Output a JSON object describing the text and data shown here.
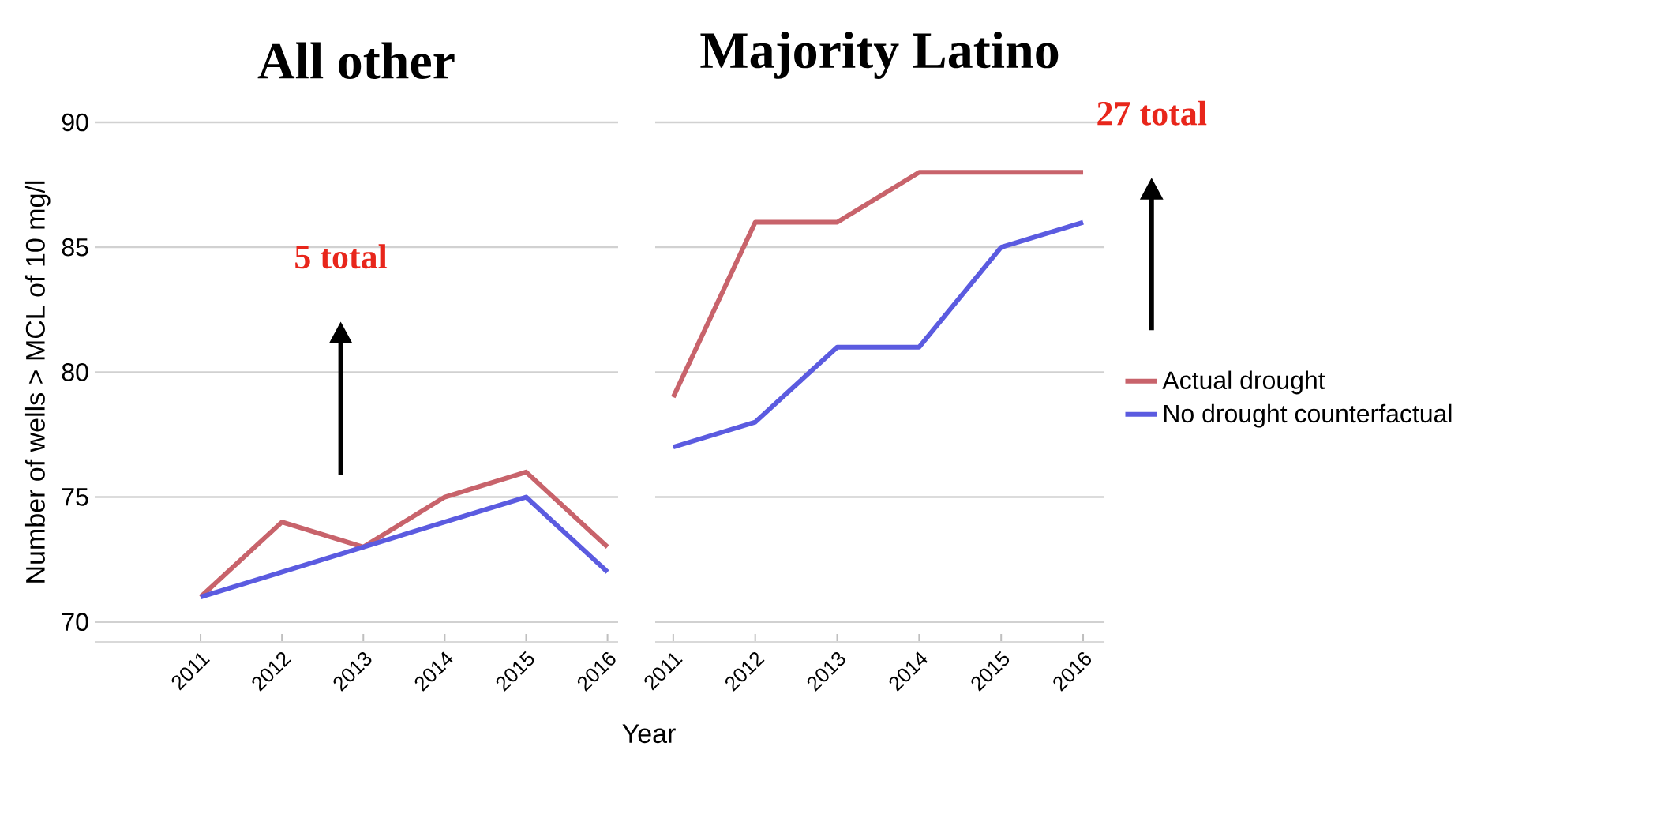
{
  "chart_data": [
    {
      "type": "line",
      "title": "All other",
      "ylabel": "Number of wells > MCL of 10 mg/l",
      "xlabel": "Year",
      "x": [
        2011,
        2012,
        2013,
        2014,
        2015,
        2016
      ],
      "series": [
        {
          "color": "#c8636b",
          "values": [
            71,
            74,
            73,
            75,
            76,
            73
          ]
        },
        {
          "color": "#5b5be0",
          "values": [
            71,
            72,
            73,
            74,
            75,
            72
          ]
        }
      ],
      "xlim": [
        2009.7,
        2016.13
      ],
      "ylim": [
        69.2,
        90
      ],
      "xticks": [
        2011,
        2012,
        2013,
        2014,
        2015,
        2016
      ],
      "yticks": [
        70,
        75,
        80,
        85,
        90
      ],
      "grid": "y",
      "annotations": [
        "5 total"
      ]
    },
    {
      "type": "line",
      "title": "Majority Latino",
      "x": [
        2011,
        2012,
        2013,
        2014,
        2015,
        2016
      ],
      "series": [
        {
          "name": "Actual drought",
          "color": "#c8636b",
          "values": [
            79,
            86,
            86,
            88,
            88,
            88
          ]
        },
        {
          "name": "No drought counterfactual",
          "color": "#5b5be0",
          "values": [
            77,
            78,
            81,
            81,
            85,
            86
          ]
        }
      ],
      "xlim": [
        2010.78,
        2016.26
      ],
      "ylim": [
        69.2,
        90
      ],
      "xticks": [
        2011,
        2012,
        2013,
        2014,
        2015,
        2016
      ],
      "yticks": [
        70,
        75,
        80,
        85,
        90
      ],
      "grid": "y",
      "tick_labels": "x",
      "legend": "right",
      "annotations": [
        "27 total"
      ]
    }
  ]
}
